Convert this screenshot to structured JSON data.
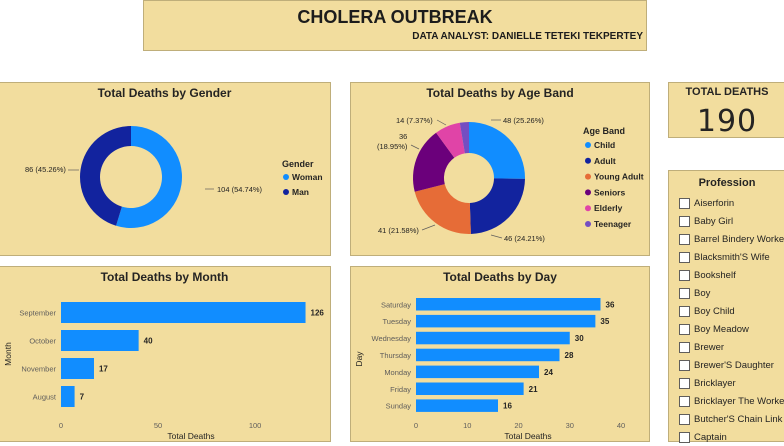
{
  "header": {
    "title": "CHOLERA OUTBREAK",
    "subtitle": "DATA ANALYST: DANIELLE TETEKI TEKPERTEY"
  },
  "kpi": {
    "label": "TOTAL DEATHS",
    "value": "190"
  },
  "profession": {
    "title": "Profession",
    "items": [
      "Aiserforin",
      "Baby Girl",
      "Barrel Bindery Worke",
      "Blacksmith'S Wife",
      "Bookshelf",
      "Boy",
      "Boy Child",
      "Boy Meadow",
      "Brewer",
      "Brewer'S Daughter",
      "Bricklayer",
      "Bricklayer The Worke",
      "Butcher'S Chain Link",
      "Captain"
    ]
  },
  "chart_data": [
    {
      "type": "pie",
      "variant": "donut",
      "title": "Total Deaths by Gender",
      "legend_title": "Gender",
      "legend_position": "right",
      "categories": [
        "Woman",
        "Man"
      ],
      "values": [
        104,
        86
      ],
      "labels": [
        "104 (54.74%)",
        "86 (45.26%)"
      ],
      "colors": [
        "#118dff",
        "#12239e"
      ]
    },
    {
      "type": "pie",
      "variant": "donut",
      "title": "Total Deaths by Age Band",
      "legend_title": "Age Band",
      "legend_position": "right",
      "categories": [
        "Child",
        "Adult",
        "Young Adult",
        "Seniors",
        "Elderly",
        "Teenager"
      ],
      "values": [
        48,
        46,
        41,
        36,
        14,
        5
      ],
      "labels": [
        "48 (25.26%)",
        "46 (24.21%)",
        "41 (21.58%)",
        "36 (18.95%)",
        "14 (7.37%)",
        ""
      ],
      "colors": [
        "#118dff",
        "#12239e",
        "#e66c37",
        "#6b007b",
        "#e044a7",
        "#744ec2"
      ]
    },
    {
      "type": "bar",
      "orientation": "horizontal",
      "title": "Total Deaths by Month",
      "xlabel": "Total Deaths",
      "ylabel": "Month",
      "categories": [
        "September",
        "October",
        "November",
        "August"
      ],
      "values": [
        126,
        40,
        17,
        7
      ],
      "xticks": [
        "0",
        "50",
        "100"
      ],
      "xlim": [
        0,
        135
      ],
      "color": "#118dff"
    },
    {
      "type": "bar",
      "orientation": "horizontal",
      "title": "Total Deaths by Day",
      "xlabel": "Total Deaths",
      "ylabel": "Day",
      "categories": [
        "Saturday",
        "Tuesday",
        "Wednesday",
        "Thursday",
        "Monday",
        "Friday",
        "Sunday"
      ],
      "values": [
        36,
        35,
        30,
        28,
        24,
        21,
        16
      ],
      "xticks": [
        "0",
        "10",
        "20",
        "30",
        "40"
      ],
      "xlim": [
        0,
        40
      ],
      "color": "#118dff"
    }
  ]
}
